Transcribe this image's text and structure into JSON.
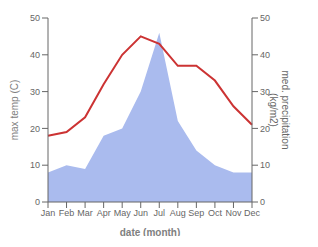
{
  "chart_data": {
    "type": "line",
    "categories": [
      "Jan",
      "Feb",
      "Mar",
      "Apr",
      "May",
      "Jun",
      "Jul",
      "Aug",
      "Sep",
      "Oct",
      "Nov",
      "Dec"
    ],
    "series": [
      {
        "type": "area",
        "color": "#aabbee",
        "axis": "y2",
        "values": [
          8,
          10,
          9,
          18,
          20,
          30,
          46,
          22,
          14,
          10,
          8,
          8
        ]
      },
      {
        "type": "line",
        "color": "#cc3333",
        "values": [
          18,
          19,
          23,
          32,
          40,
          45,
          43,
          37,
          37,
          33,
          26,
          21
        ]
      }
    ],
    "xlabel": "date (month)",
    "ylabel": "max temp (C)",
    "y2label": "med. precipitation\n(kg/m2)",
    "ylim": [
      0,
      50
    ],
    "yticks": [
      0,
      10,
      20,
      30,
      40,
      50
    ],
    "y2lim": [
      0,
      50
    ],
    "y2ticks": [
      0,
      10,
      20,
      30,
      40,
      50
    ],
    "grid": false
  }
}
